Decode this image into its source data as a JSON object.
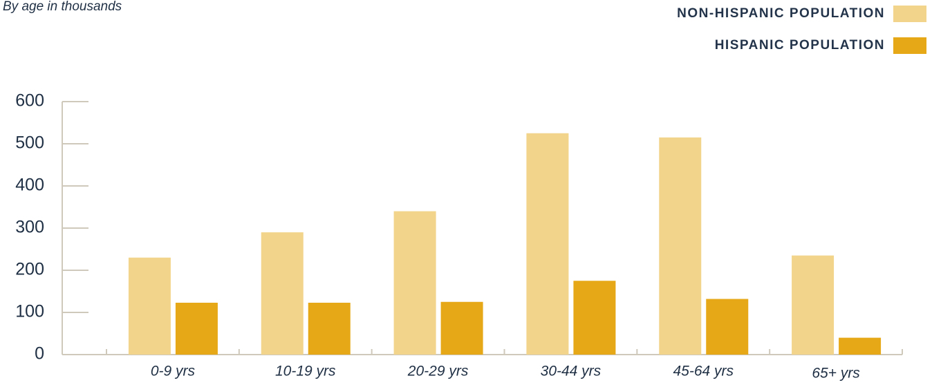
{
  "chart_data": {
    "type": "bar",
    "subtitle": "By age in thousands",
    "categories": [
      "0-9 yrs",
      "10-19 yrs",
      "20-29 yrs",
      "30-44 yrs",
      "45-64 yrs",
      "65+ yrs"
    ],
    "series": [
      {
        "name": "NON-HISPANIC POPULATION",
        "color": "#f2d48a",
        "values": [
          230,
          290,
          340,
          525,
          515,
          235
        ]
      },
      {
        "name": "HISPANIC POPULATION",
        "color": "#e6a817",
        "values": [
          123,
          123,
          125,
          175,
          132,
          40
        ]
      }
    ],
    "ylim": [
      0,
      600
    ],
    "yticks": [
      0,
      100,
      200,
      300,
      400,
      500,
      600
    ],
    "grid": false
  }
}
